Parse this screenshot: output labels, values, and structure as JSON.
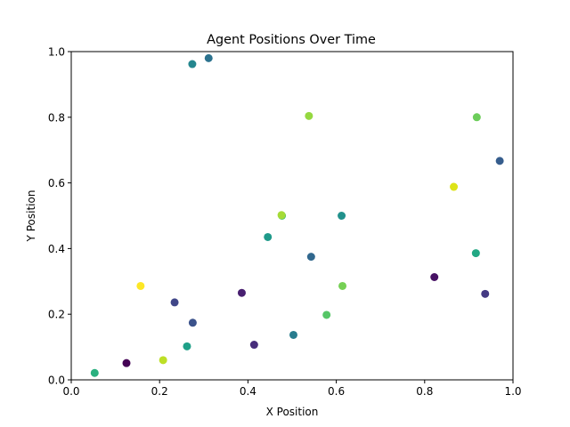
{
  "chart_data": {
    "type": "scatter",
    "title": "Agent Positions Over Time",
    "xlabel": "X Position",
    "ylabel": "Y Position",
    "xlim": [
      0.0,
      1.0
    ],
    "ylim": [
      0.0,
      1.0
    ],
    "xticks": [
      "0.0",
      "0.2",
      "0.4",
      "0.6",
      "0.8",
      "1.0"
    ],
    "yticks": [
      "0.0",
      "0.2",
      "0.4",
      "0.6",
      "0.8",
      "1.0"
    ],
    "grid": false,
    "colormap": "viridis",
    "points": [
      {
        "x": 0.125,
        "y": 0.051,
        "color": "#440154"
      },
      {
        "x": 0.822,
        "y": 0.313,
        "color": "#471164"
      },
      {
        "x": 0.386,
        "y": 0.265,
        "color": "#481f70"
      },
      {
        "x": 0.414,
        "y": 0.107,
        "color": "#472d7b"
      },
      {
        "x": 0.937,
        "y": 0.262,
        "color": "#443a83"
      },
      {
        "x": 0.234,
        "y": 0.236,
        "color": "#404688"
      },
      {
        "x": 0.275,
        "y": 0.174,
        "color": "#3b528b"
      },
      {
        "x": 0.97,
        "y": 0.667,
        "color": "#365d8d"
      },
      {
        "x": 0.543,
        "y": 0.375,
        "color": "#31688e"
      },
      {
        "x": 0.311,
        "y": 0.98,
        "color": "#2c728e"
      },
      {
        "x": 0.503,
        "y": 0.137,
        "color": "#287c8e"
      },
      {
        "x": 0.274,
        "y": 0.962,
        "color": "#24868e"
      },
      {
        "x": 0.612,
        "y": 0.5,
        "color": "#21918c"
      },
      {
        "x": 0.445,
        "y": 0.435,
        "color": "#1f9a8a"
      },
      {
        "x": 0.262,
        "y": 0.102,
        "color": "#1fa088"
      },
      {
        "x": 0.916,
        "y": 0.386,
        "color": "#22a884"
      },
      {
        "x": 0.053,
        "y": 0.021,
        "color": "#2ab07f"
      },
      {
        "x": 0.477,
        "y": 0.5,
        "color": "#44bf70"
      },
      {
        "x": 0.578,
        "y": 0.198,
        "color": "#56c667"
      },
      {
        "x": 0.918,
        "y": 0.8,
        "color": "#6ccd5a"
      },
      {
        "x": 0.614,
        "y": 0.286,
        "color": "#75d054"
      },
      {
        "x": 0.538,
        "y": 0.804,
        "color": "#95d840"
      },
      {
        "x": 0.476,
        "y": 0.502,
        "color": "#a5db36"
      },
      {
        "x": 0.208,
        "y": 0.06,
        "color": "#bddf26"
      },
      {
        "x": 0.866,
        "y": 0.588,
        "color": "#dde318"
      },
      {
        "x": 0.157,
        "y": 0.286,
        "color": "#fde725"
      }
    ]
  }
}
